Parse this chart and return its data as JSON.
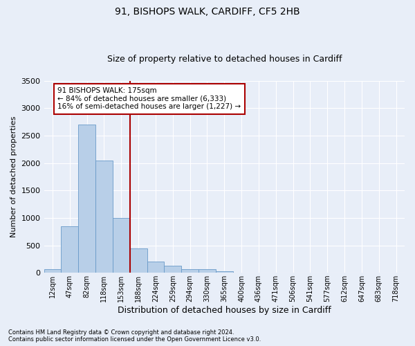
{
  "title1": "91, BISHOPS WALK, CARDIFF, CF5 2HB",
  "title2": "Size of property relative to detached houses in Cardiff",
  "xlabel": "Distribution of detached houses by size in Cardiff",
  "ylabel": "Number of detached properties",
  "categories": [
    "12sqm",
    "47sqm",
    "82sqm",
    "118sqm",
    "153sqm",
    "188sqm",
    "224sqm",
    "259sqm",
    "294sqm",
    "330sqm",
    "365sqm",
    "400sqm",
    "436sqm",
    "471sqm",
    "506sqm",
    "541sqm",
    "577sqm",
    "612sqm",
    "647sqm",
    "683sqm",
    "718sqm"
  ],
  "values": [
    70,
    850,
    2700,
    2050,
    1000,
    440,
    210,
    130,
    70,
    60,
    30,
    0,
    0,
    0,
    0,
    0,
    0,
    0,
    0,
    0,
    0
  ],
  "bar_color": "#b8cfe8",
  "bar_edge_color": "#6899c8",
  "vline_x": 4.5,
  "vline_color": "#aa0000",
  "annotation_text": "91 BISHOPS WALK: 175sqm\n← 84% of detached houses are smaller (6,333)\n16% of semi-detached houses are larger (1,227) →",
  "annotation_box_color": "#ffffff",
  "annotation_box_edge_color": "#aa0000",
  "ylim": [
    0,
    3500
  ],
  "yticks": [
    0,
    500,
    1000,
    1500,
    2000,
    2500,
    3000,
    3500
  ],
  "footer1": "Contains HM Land Registry data © Crown copyright and database right 2024.",
  "footer2": "Contains public sector information licensed under the Open Government Licence v3.0.",
  "bg_color": "#e8eef8",
  "grid_color": "#ffffff",
  "title1_fontsize": 10,
  "title2_fontsize": 9
}
